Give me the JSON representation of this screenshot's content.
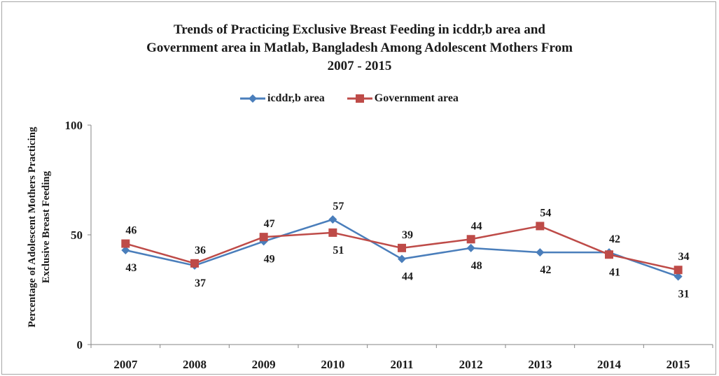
{
  "colors": {
    "icddr": "#4a7ebb",
    "gov": "#be4b48"
  },
  "chart_data": {
    "type": "line",
    "title_lines": [
      "Trends of Practicing  Exclusive  Breast Feeding in icddr,b area  and",
      "Government  area  in Matlab,  Bangladesh Among Adolescent Mothers From",
      "2007 - 2015"
    ],
    "ylabel_lines": [
      "Percentage of Adolescent Mothers Practicing",
      "Exclusive Breast Feeding"
    ],
    "xlabel": "",
    "categories": [
      "2007",
      "2008",
      "2009",
      "2010",
      "2011",
      "2012",
      "2013",
      "2014",
      "2015"
    ],
    "yticks": [
      0,
      50,
      100
    ],
    "ylim": [
      0,
      100
    ],
    "legend_position": "top-center",
    "grid": false,
    "series": [
      {
        "name": "icddr,b area",
        "marker": "diamond",
        "values": [
          43,
          36,
          47,
          57,
          39,
          44,
          42,
          42,
          31
        ]
      },
      {
        "name": "Government area",
        "marker": "square",
        "values": [
          46,
          37,
          49,
          51,
          44,
          48,
          54,
          41,
          34
        ]
      }
    ],
    "data_labels": [
      {
        "label": "46",
        "category": "2007",
        "pos": "above"
      },
      {
        "label": "43",
        "category": "2007",
        "pos": "below"
      },
      {
        "label": "36",
        "category": "2008",
        "pos": "above"
      },
      {
        "label": "37",
        "category": "2008",
        "pos": "below"
      },
      {
        "label": "47",
        "category": "2009",
        "pos": "above"
      },
      {
        "label": "49",
        "category": "2009",
        "pos": "below"
      },
      {
        "label": "57",
        "category": "2010",
        "pos": "above"
      },
      {
        "label": "51",
        "category": "2010",
        "pos": "below"
      },
      {
        "label": "39",
        "category": "2011",
        "pos": "above"
      },
      {
        "label": "44",
        "category": "2011",
        "pos": "below"
      },
      {
        "label": "44",
        "category": "2012",
        "pos": "above"
      },
      {
        "label": "48",
        "category": "2012",
        "pos": "below"
      },
      {
        "label": "54",
        "category": "2013",
        "pos": "above"
      },
      {
        "label": "42",
        "category": "2013",
        "pos": "below"
      },
      {
        "label": "42",
        "category": "2014",
        "pos": "above"
      },
      {
        "label": "41",
        "category": "2014",
        "pos": "below"
      },
      {
        "label": "34",
        "category": "2015",
        "pos": "above"
      },
      {
        "label": "31",
        "category": "2015",
        "pos": "below"
      }
    ]
  }
}
